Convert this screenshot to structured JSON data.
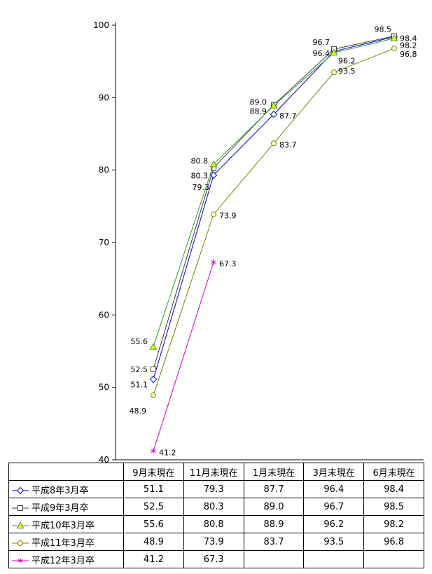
{
  "chart_data": {
    "type": "line",
    "title": "",
    "xlabel": "",
    "ylabel": "",
    "ylim": [
      40,
      100
    ],
    "yticks": [
      40,
      50,
      60,
      70,
      80,
      90,
      100
    ],
    "grid": false,
    "legend_position": "table-left",
    "categories": [
      "9月末現在",
      "11月末現在",
      "1月末現在",
      "3月末現在",
      "6月末現在"
    ],
    "series": [
      {
        "name": "平成8年3月卒",
        "marker": "diamond",
        "color": "#0000cc",
        "marker_fill": "#ffffff",
        "values": [
          51.1,
          79.3,
          87.7,
          96.4,
          98.4
        ]
      },
      {
        "name": "平成9年3月卒",
        "marker": "square",
        "color": "#404040",
        "marker_fill": "#ffffff",
        "values": [
          52.5,
          80.3,
          89.0,
          96.7,
          98.5
        ]
      },
      {
        "name": "平成10年3月卒",
        "marker": "triangle",
        "color": "#339933",
        "marker_fill": "#ffff00",
        "values": [
          55.6,
          80.8,
          88.9,
          96.2,
          98.2
        ]
      },
      {
        "name": "平成11年3月卒",
        "marker": "circle",
        "color": "#808000",
        "marker_fill": "#ffffcc",
        "values": [
          48.9,
          73.9,
          83.7,
          93.5,
          96.8
        ]
      },
      {
        "name": "平成12年3月卒",
        "marker": "star",
        "color": "#cc00cc",
        "marker_fill": "#cc00cc",
        "values": [
          41.2,
          67.3,
          null,
          null,
          null
        ]
      }
    ],
    "value_labels": true,
    "label_offsets": [
      [
        [
          -8,
          11,
          "end"
        ],
        [
          -6,
          21,
          "end"
        ],
        [
          8,
          6,
          "start"
        ],
        [
          -6,
          7,
          "end"
        ],
        [
          8,
          6,
          "start"
        ]
      ],
      [
        [
          -8,
          4,
          "end"
        ],
        [
          -8,
          15,
          "end"
        ],
        [
          -10,
          0,
          "end"
        ],
        [
          -6,
          -6,
          "end"
        ],
        [
          -4,
          -6,
          "end"
        ]
      ],
      [
        [
          -8,
          -4,
          "end"
        ],
        [
          -8,
          -1,
          "end"
        ],
        [
          -10,
          12,
          "end"
        ],
        [
          6,
          15,
          "start"
        ],
        [
          8,
          14,
          "start"
        ]
      ],
      [
        [
          -10,
          26,
          "end"
        ],
        [
          8,
          6,
          "start"
        ],
        [
          8,
          6,
          "start"
        ],
        [
          6,
          2,
          "start"
        ],
        [
          8,
          12,
          "start"
        ]
      ],
      [
        [
          8,
          6,
          "start"
        ],
        [
          8,
          6,
          "start"
        ],
        null,
        null,
        null
      ]
    ],
    "table_corner_label": ""
  }
}
